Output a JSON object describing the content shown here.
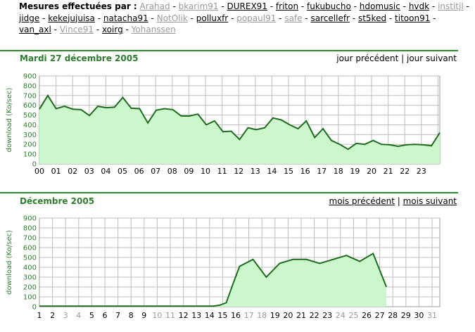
{
  "header": {
    "title": "Mesures effectuées par :",
    "users": [
      {
        "name": "Arahad",
        "active": false
      },
      {
        "name": "bkarim91",
        "active": false
      },
      {
        "name": "DUREX91",
        "active": true
      },
      {
        "name": "friton",
        "active": true
      },
      {
        "name": "fukubucho",
        "active": true
      },
      {
        "name": "hdomusic",
        "active": true
      },
      {
        "name": "hvdk",
        "active": true
      },
      {
        "name": "institjl",
        "active": false
      },
      {
        "name": "jidge",
        "active": true
      },
      {
        "name": "kekejujuisa",
        "active": true
      },
      {
        "name": "natacha91",
        "active": true
      },
      {
        "name": "NotOlik",
        "active": false
      },
      {
        "name": "polluxfr",
        "active": true
      },
      {
        "name": "popaul91",
        "active": false
      },
      {
        "name": "safe",
        "active": false
      },
      {
        "name": "sarcellefr",
        "active": true
      },
      {
        "name": "st5ked",
        "active": true
      },
      {
        "name": "titoon91",
        "active": true
      },
      {
        "name": "van_axl",
        "active": true
      },
      {
        "name": "Vince91",
        "active": false
      },
      {
        "name": "xoirg",
        "active": true
      },
      {
        "name": "Yohanssen",
        "active": false
      }
    ]
  },
  "day_section": {
    "title": "Mardi 27 décembre 2005",
    "prev_label": "jour précédent",
    "separator": "|",
    "next_label": "jour suivant"
  },
  "month_section": {
    "title": "Décembre 2005",
    "prev_label": "mois précédent",
    "separator": "|",
    "next_label": "mois suivant"
  },
  "colors": {
    "accent": "#2e7d2e",
    "line": "#1f6b1f",
    "fill": "#ccf7cc",
    "grid": "#bdbdbd",
    "muted_label": "#999999"
  },
  "chart_data": [
    {
      "type": "area",
      "ylabel": "download (Ko/sec)",
      "ylim": [
        0,
        900
      ],
      "yticks": [
        0,
        100,
        200,
        300,
        400,
        500,
        600,
        700,
        800,
        900
      ],
      "x_ticks": [
        "00",
        "01",
        "02",
        "03",
        "04",
        "05",
        "06",
        "07",
        "08",
        "09",
        "10",
        "11",
        "12",
        "13",
        "14",
        "15",
        "16",
        "17",
        "18",
        "19",
        "20",
        "21",
        "22",
        "23"
      ],
      "xlim": [
        0,
        24
      ],
      "grid": true,
      "series": [
        {
          "x": [
            0,
            0.5,
            1,
            1.5,
            2,
            2.5,
            3,
            3.5,
            4,
            4.5,
            5,
            5.5,
            6,
            6.5,
            7,
            7.5,
            8,
            8.5,
            9,
            9.5,
            10,
            10.5,
            11,
            11.5,
            12,
            12.5,
            13,
            13.5,
            14,
            14.5,
            15,
            15.5,
            16,
            16.5,
            17,
            17.5,
            18,
            18.5,
            19,
            19.5,
            20,
            20.5,
            21,
            21.5,
            22,
            22.5,
            23,
            23.5,
            24
          ],
          "values": [
            560,
            700,
            565,
            590,
            560,
            555,
            495,
            590,
            575,
            580,
            680,
            570,
            565,
            420,
            550,
            565,
            555,
            490,
            490,
            510,
            400,
            440,
            330,
            335,
            250,
            370,
            350,
            370,
            470,
            450,
            400,
            360,
            440,
            270,
            360,
            240,
            200,
            150,
            210,
            200,
            240,
            200,
            195,
            180,
            195,
            200,
            195,
            185,
            320
          ]
        }
      ]
    },
    {
      "type": "area",
      "ylabel": "download (Ko/sec)",
      "ylim": [
        0,
        900
      ],
      "yticks": [
        0,
        100,
        200,
        300,
        400,
        500,
        600,
        700,
        800,
        900
      ],
      "x_ticks": [
        "1",
        "2",
        "3",
        "4",
        "5",
        "6",
        "7",
        "8",
        "9",
        "10",
        "11",
        "12",
        "13",
        "14",
        "15",
        "16",
        "17",
        "18",
        "19",
        "20",
        "21",
        "22",
        "23",
        "24",
        "25",
        "26",
        "27",
        "28",
        "29",
        "30",
        "31"
      ],
      "muted_x_ticks": [
        "3",
        "4",
        "10",
        "11",
        "17",
        "18",
        "24",
        "25",
        "31"
      ],
      "xlim": [
        1,
        31
      ],
      "grid": true,
      "series": [
        {
          "x": [
            1,
            2,
            3,
            4,
            5,
            6,
            7,
            8,
            9,
            10,
            11,
            12,
            13,
            14,
            14.5,
            15,
            15.5,
            16,
            17,
            18,
            18.5,
            19,
            20,
            21,
            22,
            23,
            24,
            25,
            26,
            27
          ],
          "values": [
            5,
            5,
            5,
            5,
            5,
            5,
            5,
            5,
            5,
            5,
            5,
            5,
            5,
            5,
            15,
            40,
            230,
            410,
            480,
            300,
            370,
            440,
            480,
            480,
            440,
            480,
            520,
            460,
            540,
            200
          ]
        }
      ]
    }
  ]
}
